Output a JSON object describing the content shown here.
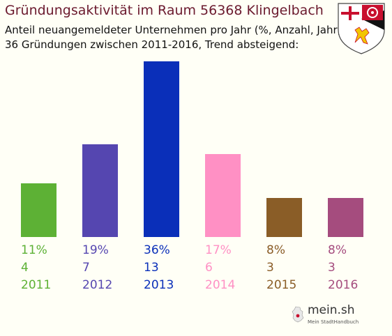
{
  "header": {
    "title": "Gründungsaktivität im Raum 56368 Klingelbach",
    "subtitle_line1": "Anteil neuangemeldeter Unternehmen pro Jahr (%, Anzahl, Jahr)",
    "subtitle_line2": "36 Gründungen zwischen 2011-2016, Trend absteigend:"
  },
  "logo": {
    "name": "mein.sh",
    "tagline": "Mein StadtHandbuch",
    "icon": "germany-map-icon"
  },
  "coat_of_arms": {
    "icon": "rhineland-palatinate-coat-of-arms-icon"
  },
  "chart_data": {
    "type": "bar",
    "categories": [
      "2011",
      "2012",
      "2013",
      "2014",
      "2015",
      "2016"
    ],
    "values": [
      11,
      19,
      36,
      17,
      8,
      8
    ],
    "value_labels": [
      "11%",
      "19%",
      "36%",
      "17%",
      "8%",
      "8%"
    ],
    "counts": [
      "4",
      "7",
      "13",
      "6",
      "3",
      "3"
    ],
    "colors": [
      "#5db135",
      "#5546b0",
      "#0a2fb9",
      "#ff90c4",
      "#8a5d27",
      "#a54c7e"
    ],
    "ylim": [
      0,
      36
    ],
    "grid": false,
    "legend": "none"
  }
}
